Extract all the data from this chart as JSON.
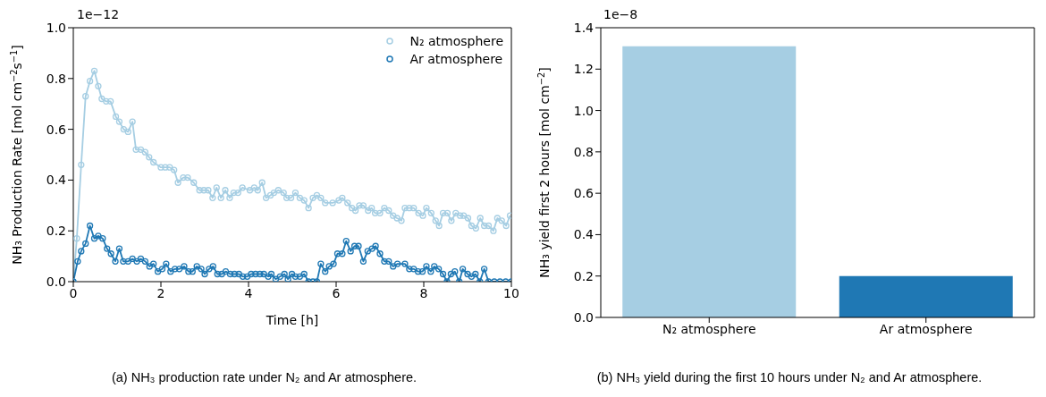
{
  "chart_data": [
    {
      "type": "line",
      "title": "(a) NH₃ production rate under N₂ and Ar atmosphere.",
      "xlabel": "Time [h]",
      "ylabel": "NH₃ Production Rate [mol cm$^{−2}$s$^{−1}$]",
      "annotations": [
        "1e−12"
      ],
      "xlim": [
        0,
        10
      ],
      "xticks": [
        0,
        2,
        4,
        6,
        8,
        10
      ],
      "ylim": [
        0,
        1.0
      ],
      "yticks": [
        {
          "value": 0,
          "label": "0.0"
        },
        {
          "value": 0.2,
          "label": "0.2"
        },
        {
          "value": 0.4,
          "label": "0.4"
        },
        {
          "value": 0.6,
          "label": "0.6"
        },
        {
          "value": 0.8,
          "label": "0.8"
        },
        {
          "value": 1.0,
          "label": "1.0"
        }
      ],
      "legend": "top right",
      "marker": "circle",
      "line_style": "solid",
      "series": [
        {
          "name": "N₂ atmosphere",
          "color": "#a6cee3",
          "x": [
            0,
            0.08,
            0.18,
            0.28,
            0.38,
            0.48,
            0.57,
            0.65,
            0.75,
            0.85,
            0.97,
            1.05,
            1.15,
            1.25,
            1.35,
            1.43,
            1.54,
            1.64,
            1.73,
            1.83,
            2.0,
            2.1,
            2.2,
            2.3,
            2.39,
            2.51,
            2.61,
            2.75,
            2.88,
            2.98,
            3.08,
            3.18,
            3.27,
            3.37,
            3.47,
            3.57,
            3.66,
            3.76,
            3.86,
            4.03,
            4.13,
            4.21,
            4.31,
            4.4,
            4.5,
            4.58,
            4.68,
            4.8,
            4.87,
            4.97,
            5.07,
            5.17,
            5.27,
            5.37,
            5.47,
            5.56,
            5.65,
            5.75,
            5.92,
            6.06,
            6.14,
            6.26,
            6.36,
            6.44,
            6.53,
            6.62,
            6.73,
            6.81,
            6.89,
            7.0,
            7.1,
            7.2,
            7.3,
            7.39,
            7.49,
            7.57,
            7.67,
            7.77,
            7.88,
            7.98,
            8.06,
            8.17,
            8.27,
            8.35,
            8.44,
            8.54,
            8.63,
            8.73,
            8.83,
            8.91,
            9.01,
            9.09,
            9.19,
            9.29,
            9.38,
            9.48,
            9.59,
            9.68,
            9.78,
            9.88,
            9.97
          ],
          "values": [
            0,
            0.17,
            0.46,
            0.73,
            0.79,
            0.83,
            0.77,
            0.72,
            0.71,
            0.71,
            0.65,
            0.63,
            0.6,
            0.59,
            0.63,
            0.52,
            0.52,
            0.51,
            0.49,
            0.47,
            0.45,
            0.45,
            0.45,
            0.44,
            0.39,
            0.41,
            0.41,
            0.39,
            0.36,
            0.36,
            0.36,
            0.33,
            0.37,
            0.33,
            0.36,
            0.33,
            0.35,
            0.35,
            0.37,
            0.36,
            0.37,
            0.36,
            0.39,
            0.33,
            0.34,
            0.35,
            0.36,
            0.35,
            0.33,
            0.33,
            0.35,
            0.33,
            0.32,
            0.29,
            0.33,
            0.34,
            0.33,
            0.31,
            0.31,
            0.32,
            0.33,
            0.31,
            0.29,
            0.28,
            0.3,
            0.3,
            0.28,
            0.29,
            0.27,
            0.27,
            0.29,
            0.28,
            0.26,
            0.25,
            0.24,
            0.29,
            0.29,
            0.29,
            0.27,
            0.26,
            0.29,
            0.27,
            0.24,
            0.22,
            0.27,
            0.27,
            0.24,
            0.27,
            0.26,
            0.26,
            0.25,
            0.22,
            0.21,
            0.25,
            0.22,
            0.22,
            0.2,
            0.25,
            0.24,
            0.22,
            0.26
          ]
        },
        {
          "name": "Ar atmosphere",
          "color": "#1f78b4",
          "x": [
            0,
            0.1,
            0.18,
            0.28,
            0.38,
            0.48,
            0.57,
            0.67,
            0.77,
            0.86,
            0.96,
            1.05,
            1.14,
            1.25,
            1.35,
            1.45,
            1.54,
            1.64,
            1.74,
            1.83,
            1.93,
            2.03,
            2.12,
            2.22,
            2.32,
            2.42,
            2.53,
            2.63,
            2.72,
            2.82,
            2.92,
            3.0,
            3.1,
            3.19,
            3.29,
            3.39,
            3.48,
            3.58,
            3.68,
            3.78,
            3.87,
            3.97,
            4.06,
            4.16,
            4.26,
            4.35,
            4.45,
            4.52,
            4.62,
            4.72,
            4.82,
            4.9,
            4.99,
            5.07,
            5.17,
            5.27,
            5.37,
            5.47,
            5.56,
            5.65,
            5.75,
            5.84,
            5.94,
            6.03,
            6.14,
            6.23,
            6.33,
            6.42,
            6.51,
            6.62,
            6.72,
            6.82,
            6.9,
            7.0,
            7.1,
            7.2,
            7.3,
            7.4,
            7.57,
            7.67,
            7.77,
            7.87,
            7.97,
            8.06,
            8.16,
            8.24,
            8.34,
            8.44,
            8.53,
            8.62,
            8.71,
            8.81,
            8.89,
            9.0,
            9.09,
            9.18,
            9.28,
            9.38,
            9.48,
            9.61,
            9.74,
            9.87,
            10
          ],
          "values": [
            0,
            0.08,
            0.12,
            0.15,
            0.22,
            0.17,
            0.18,
            0.17,
            0.13,
            0.11,
            0.08,
            0.13,
            0.08,
            0.08,
            0.09,
            0.08,
            0.09,
            0.08,
            0.06,
            0.07,
            0.04,
            0.05,
            0.07,
            0.04,
            0.05,
            0.05,
            0.06,
            0.04,
            0.04,
            0.06,
            0.05,
            0.03,
            0.05,
            0.06,
            0.03,
            0.03,
            0.04,
            0.03,
            0.03,
            0.03,
            0.02,
            0.02,
            0.03,
            0.03,
            0.03,
            0.03,
            0.02,
            0.03,
            0.01,
            0.02,
            0.03,
            0.01,
            0.03,
            0.02,
            0.02,
            0.03,
            0,
            0,
            0,
            0.07,
            0.04,
            0.06,
            0.07,
            0.11,
            0.11,
            0.16,
            0.12,
            0.14,
            0.14,
            0.08,
            0.12,
            0.13,
            0.14,
            0.11,
            0.08,
            0.08,
            0.06,
            0.07,
            0.07,
            0.05,
            0.05,
            0.04,
            0.04,
            0.06,
            0.04,
            0.06,
            0.05,
            0.03,
            0,
            0.03,
            0.04,
            0,
            0.05,
            0.03,
            0.02,
            0.03,
            0,
            0.05,
            0,
            0,
            0,
            0,
            0
          ]
        }
      ]
    },
    {
      "type": "bar",
      "title": "(b) NH₃ yield during the first 10 hours under N₂ and Ar atmosphere.",
      "ylabel": "NH₃ yield first 2 hours [mol cm$^{−2}$]",
      "annotations": [
        "1e−8"
      ],
      "categories": [
        "N₂ atmosphere",
        "Ar atmosphere"
      ],
      "values": [
        1.31,
        0.2
      ],
      "colors": [
        "#a6cee3",
        "#1f78b4"
      ],
      "ylim": [
        0,
        1.4
      ],
      "yticks": [
        {
          "value": 0,
          "label": "0.0"
        },
        {
          "value": 0.2,
          "label": "0.2"
        },
        {
          "value": 0.4,
          "label": "0.4"
        },
        {
          "value": 0.6,
          "label": "0.6"
        },
        {
          "value": 0.8,
          "label": "0.8"
        },
        {
          "value": 1.0,
          "label": "1.0"
        },
        {
          "value": 1.2,
          "label": "1.2"
        },
        {
          "value": 1.4,
          "label": "1.4"
        }
      ]
    }
  ]
}
